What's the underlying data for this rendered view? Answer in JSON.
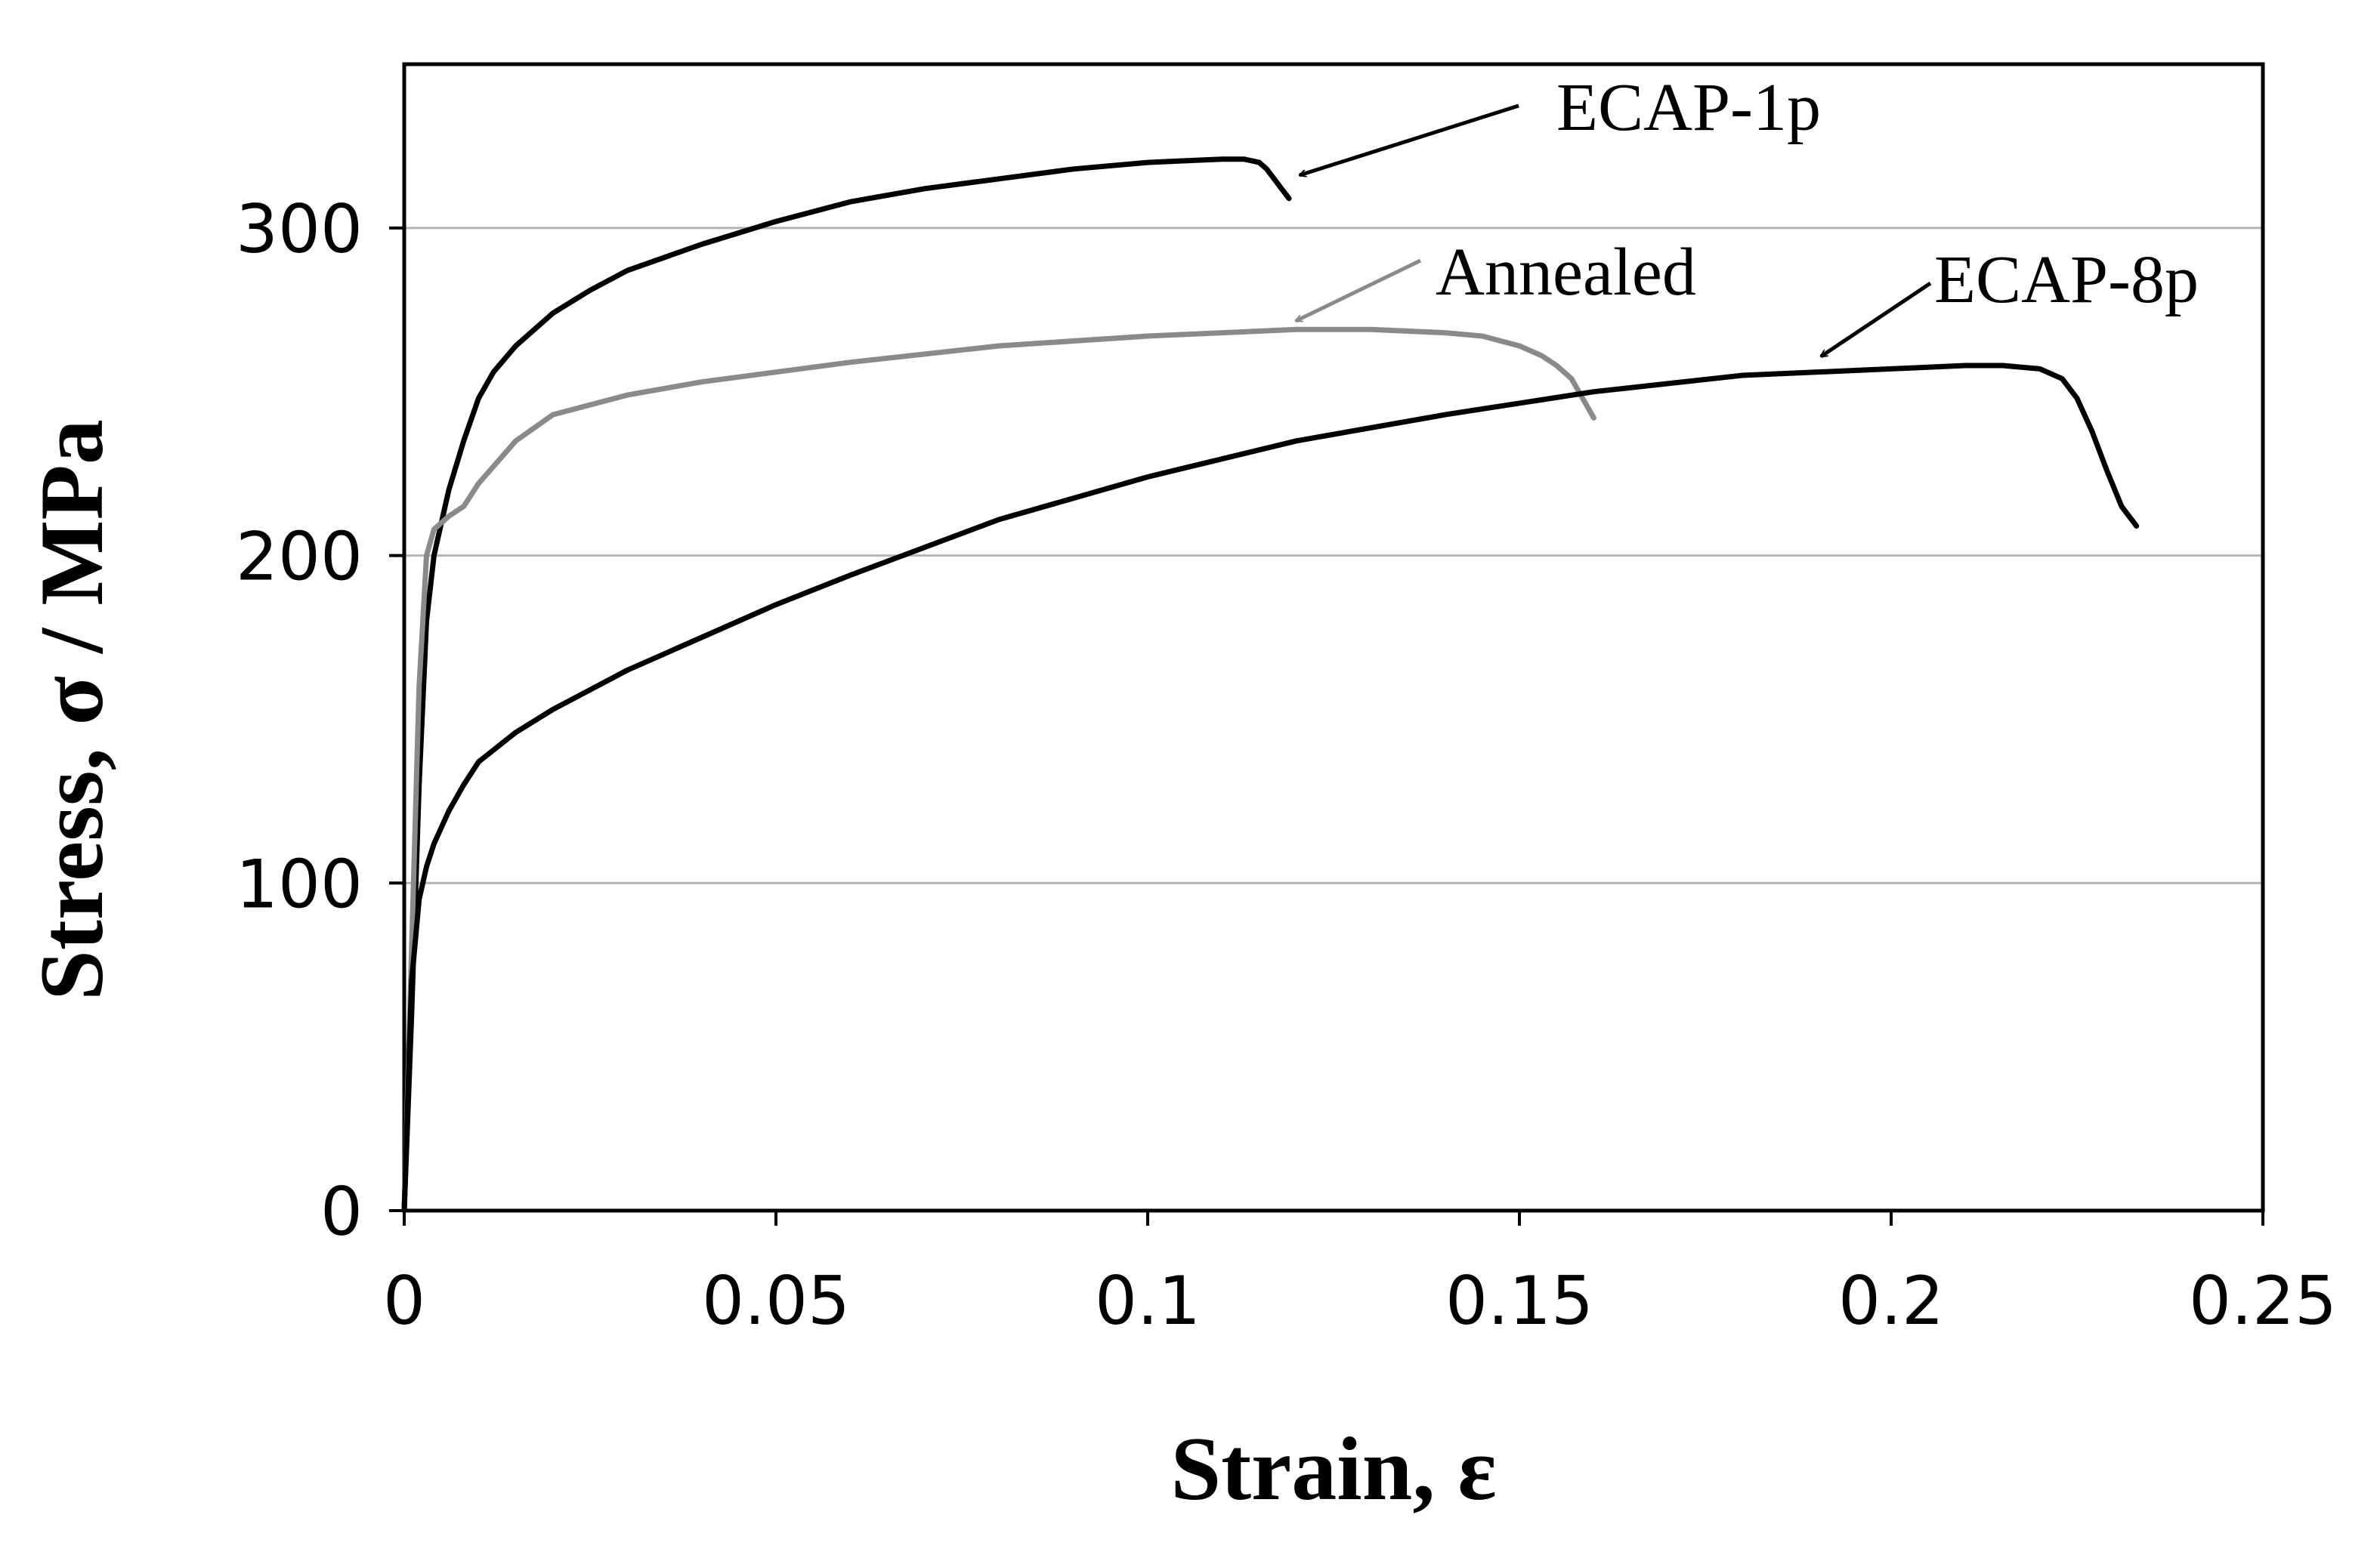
{
  "chart_data": {
    "type": "line",
    "xlabel": "Strain, ε",
    "ylabel": "Stress, σ / MPa",
    "xlim": [
      0,
      0.25
    ],
    "ylim": [
      0,
      350
    ],
    "xticks": [
      0,
      0.05,
      0.1,
      0.15,
      0.2,
      0.25
    ],
    "xtick_labels": [
      "0",
      "0.05",
      "0.1",
      "0.15",
      "0.2",
      "0.25"
    ],
    "yticks": [
      0,
      100,
      200,
      300
    ],
    "ytick_labels": [
      "0",
      "100",
      "200",
      "300"
    ],
    "grid": "horizontal",
    "legend": "none",
    "series": [
      {
        "name": "ECAP-1p",
        "color": "#000000",
        "x": [
          0,
          0.001,
          0.002,
          0.003,
          0.004,
          0.005,
          0.006,
          0.008,
          0.01,
          0.012,
          0.015,
          0.02,
          0.025,
          0.03,
          0.04,
          0.05,
          0.06,
          0.07,
          0.08,
          0.09,
          0.1,
          0.105,
          0.11,
          0.113,
          0.115,
          0.116,
          0.117,
          0.118,
          0.119
        ],
        "y": [
          0,
          60,
          130,
          180,
          200,
          210,
          220,
          235,
          248,
          256,
          264,
          274,
          281,
          287,
          295,
          302,
          308,
          312,
          315,
          318,
          320,
          320.5,
          321,
          321,
          320,
          318,
          315,
          312,
          309
        ]
      },
      {
        "name": "Annealed",
        "color": "#8a8a8a",
        "x": [
          0,
          0.001,
          0.002,
          0.003,
          0.004,
          0.005,
          0.006,
          0.008,
          0.01,
          0.015,
          0.02,
          0.03,
          0.04,
          0.06,
          0.08,
          0.1,
          0.12,
          0.13,
          0.14,
          0.145,
          0.15,
          0.153,
          0.155,
          0.157,
          0.158,
          0.159,
          0.16
        ],
        "y": [
          0,
          80,
          160,
          200,
          208,
          210,
          212,
          215,
          222,
          235,
          243,
          249,
          253,
          259,
          264,
          267,
          269,
          269,
          268,
          267,
          264,
          261,
          258,
          254,
          250,
          246,
          242
        ]
      },
      {
        "name": "ECAP-8p",
        "color": "#000000",
        "x": [
          0,
          0.001,
          0.002,
          0.003,
          0.004,
          0.006,
          0.008,
          0.01,
          0.015,
          0.02,
          0.03,
          0.04,
          0.05,
          0.06,
          0.08,
          0.1,
          0.12,
          0.14,
          0.16,
          0.18,
          0.2,
          0.21,
          0.215,
          0.22,
          0.223,
          0.225,
          0.227,
          0.229,
          0.231,
          0.233
        ],
        "y": [
          0,
          70,
          95,
          105,
          112,
          122,
          130,
          137,
          146,
          153,
          165,
          175,
          185,
          194,
          211,
          224,
          235,
          243,
          250,
          255,
          257,
          258,
          258,
          257,
          254,
          248,
          238,
          226,
          215,
          209
        ]
      }
    ],
    "annotations": [
      {
        "text": "ECAP-1p",
        "points_to": [
          0.12,
          315
        ]
      },
      {
        "text": "Annealed",
        "points_to": [
          0.12,
          268
        ]
      },
      {
        "text": "ECAP-8p",
        "points_to": [
          0.19,
          258
        ]
      }
    ]
  }
}
